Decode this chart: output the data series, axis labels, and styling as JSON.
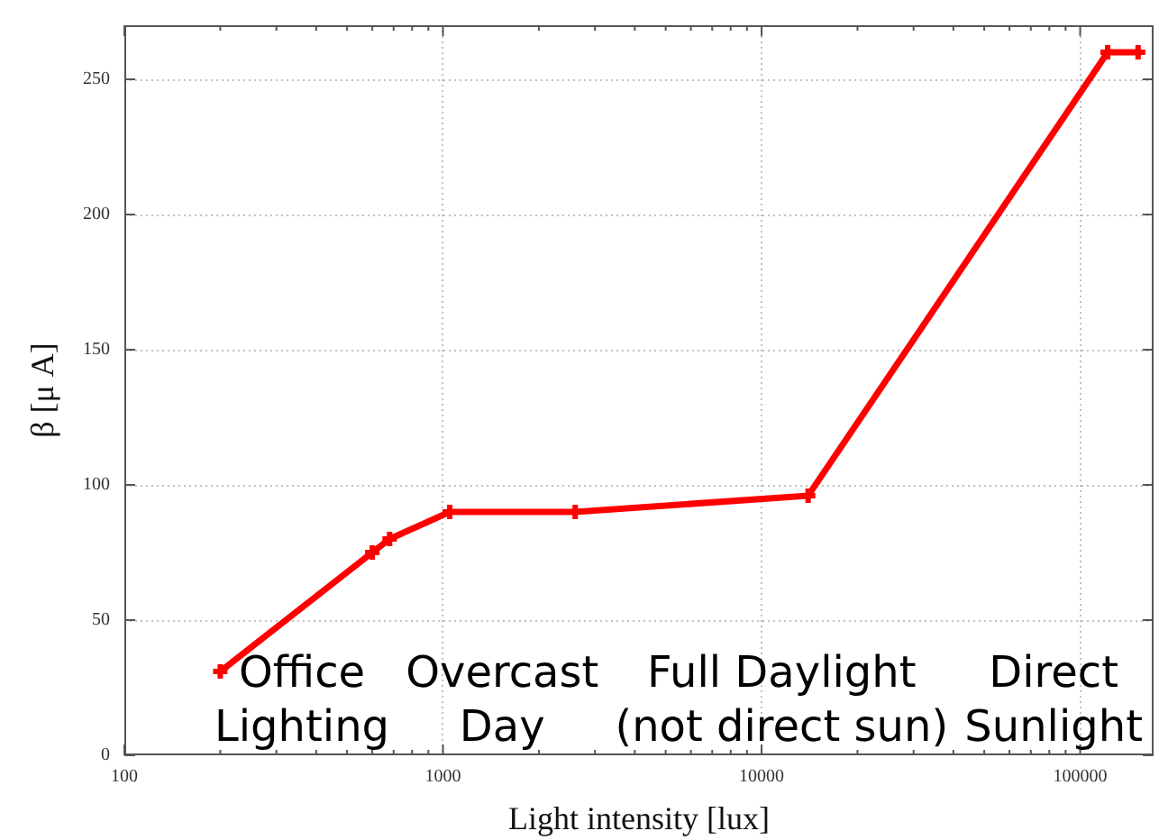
{
  "chart_data": {
    "type": "line",
    "xlabel": "Light intensity [lux]",
    "ylabel": "β [μ A]",
    "x": [
      200,
      600,
      680,
      1050,
      2600,
      14000,
      122000,
      152000
    ],
    "values": [
      31,
      75,
      80,
      90,
      90,
      96,
      260,
      260
    ],
    "color": "#ff0000",
    "log": "x",
    "xlim": [
      100,
      170000
    ],
    "ylim": [
      0,
      270
    ],
    "xticks": [
      100,
      {
        "value": 200,
        "label": null
      },
      {
        "value": 300,
        "label": null
      },
      {
        "value": 400,
        "label": null
      },
      {
        "value": 500,
        "label": null
      },
      {
        "value": 600,
        "label": null
      },
      {
        "value": 700,
        "label": null
      },
      {
        "value": 800,
        "label": null
      },
      {
        "value": 900,
        "label": null
      },
      1000,
      {
        "value": 2000,
        "label": null
      },
      {
        "value": 3000,
        "label": null
      },
      {
        "value": 4000,
        "label": null
      },
      {
        "value": 5000,
        "label": null
      },
      {
        "value": 6000,
        "label": null
      },
      {
        "value": 7000,
        "label": null
      },
      {
        "value": 8000,
        "label": null
      },
      {
        "value": 9000,
        "label": null
      },
      10000,
      {
        "value": 20000,
        "label": null
      },
      {
        "value": 30000,
        "label": null
      },
      {
        "value": 40000,
        "label": null
      },
      {
        "value": 50000,
        "label": null
      },
      {
        "value": 60000,
        "label": null
      },
      {
        "value": 70000,
        "label": null
      },
      {
        "value": 80000,
        "label": null
      },
      {
        "value": 90000,
        "label": null
      },
      100000
    ],
    "yticks": [
      0,
      50,
      100,
      150,
      200,
      250
    ],
    "grid": true,
    "marker": "cross",
    "line_style": "solid",
    "annotations": [
      "Office\nLighting",
      "Overcast\nDay",
      "Full Daylight\n(not direct sun)",
      "Direct\nSunlight"
    ]
  }
}
